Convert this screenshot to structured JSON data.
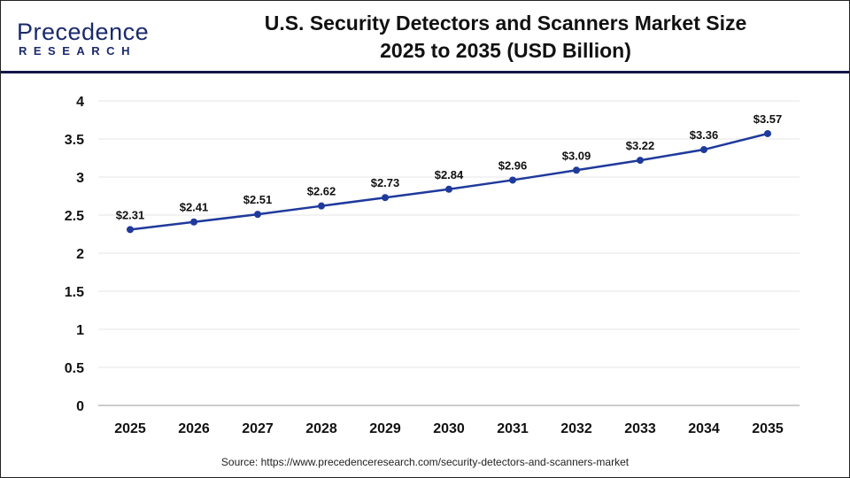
{
  "logo": {
    "line1": "Precedence",
    "line2": "RESEARCH"
  },
  "title_line1": "U.S. Security Detectors and Scanners Market Size",
  "title_line2": "2025 to 2035 (USD Billion)",
  "source": "Source: https://www.precedenceresearch.com/security-detectors-and-scanners-market",
  "chart_data": {
    "type": "line",
    "title": "U.S. Security Detectors and Scanners Market Size 2025 to 2035 (USD Billion)",
    "categories": [
      "2025",
      "2026",
      "2027",
      "2028",
      "2029",
      "2030",
      "2031",
      "2032",
      "2033",
      "2034",
      "2035"
    ],
    "values": [
      2.31,
      2.41,
      2.51,
      2.62,
      2.73,
      2.84,
      2.96,
      3.09,
      3.22,
      3.36,
      3.57
    ],
    "data_labels": [
      "$2.31",
      "$2.41",
      "$2.51",
      "$2.62",
      "$2.73",
      "$2.84",
      "$2.96",
      "$3.09",
      "$3.22",
      "$3.36",
      "$3.57"
    ],
    "yticks": [
      "0",
      "0.5",
      "1",
      "1.5",
      "2",
      "2.5",
      "3",
      "3.5",
      "4"
    ],
    "ylim": [
      0,
      4
    ],
    "grid": true,
    "line_color": "#1f3a9c"
  }
}
